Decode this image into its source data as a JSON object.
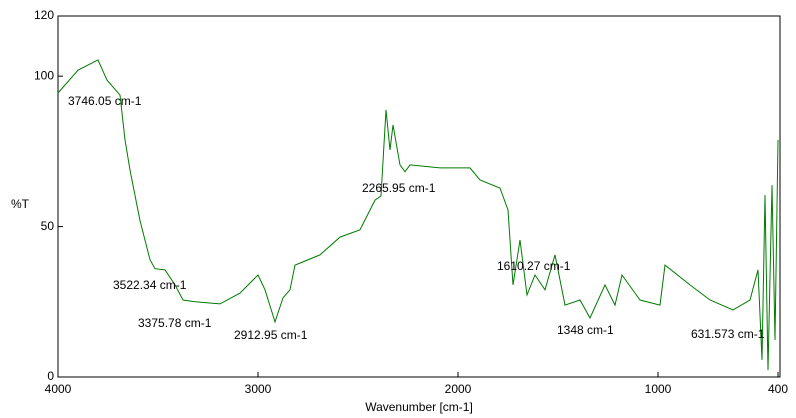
{
  "chart_data": {
    "type": "line",
    "x_label": "Wavenumber [cm-1]",
    "y_label": "%T",
    "xlim": [
      4000,
      400
    ],
    "ylim": [
      0,
      120
    ],
    "xticks": [
      4000,
      3000,
      2000,
      1000,
      400
    ],
    "yticks": [
      0,
      50,
      100,
      120
    ],
    "series": [
      {
        "color": "#007a00",
        "x": [
          4000,
          3900,
          3800,
          3755,
          3690,
          3665,
          3640,
          3590,
          3540,
          3515,
          3465,
          3415,
          3375,
          3315,
          3190,
          3090,
          3000,
          2965,
          2915,
          2875,
          2840,
          2815,
          2690,
          2590,
          2490,
          2415,
          2385,
          2360,
          2340,
          2325,
          2290,
          2265,
          2240,
          2090,
          1940,
          1890,
          1790,
          1750,
          1725,
          1690,
          1655,
          1615,
          1565,
          1515,
          1465,
          1390,
          1340,
          1265,
          1215,
          1180,
          1090,
          990,
          965,
          840,
          740,
          625,
          540,
          500,
          480,
          465,
          450,
          430,
          415,
          400
        ],
        "values": [
          94.4,
          102,
          105.4,
          98.7,
          93.7,
          78.8,
          68.8,
          52,
          39,
          36,
          35.6,
          30.6,
          25.6,
          25,
          24.3,
          27.9,
          33.9,
          29,
          18.3,
          26.3,
          29,
          37.2,
          40.6,
          46.5,
          48.9,
          58.8,
          60.2,
          88.8,
          75.5,
          83.8,
          70.5,
          68.2,
          70.5,
          69.5,
          69.5,
          65.5,
          62.8,
          55.5,
          30.6,
          45.5,
          27.3,
          33.9,
          29,
          40.6,
          23.9,
          25.6,
          19.6,
          30.6,
          23.9,
          33.9,
          25.6,
          23.9,
          37.2,
          30.6,
          25.6,
          22.3,
          25.6,
          35.6,
          5.7,
          60.5,
          2.3,
          63.8,
          12.3,
          78.8
        ]
      }
    ],
    "annotations": [
      "3746.05 cm-1",
      "3522.34 cm-1",
      "3375.78 cm-1",
      "2912.95 cm-1",
      "2265.95 cm-1",
      "1610.27 cm-1",
      "1348 cm-1",
      "631.573 cm-1"
    ]
  }
}
